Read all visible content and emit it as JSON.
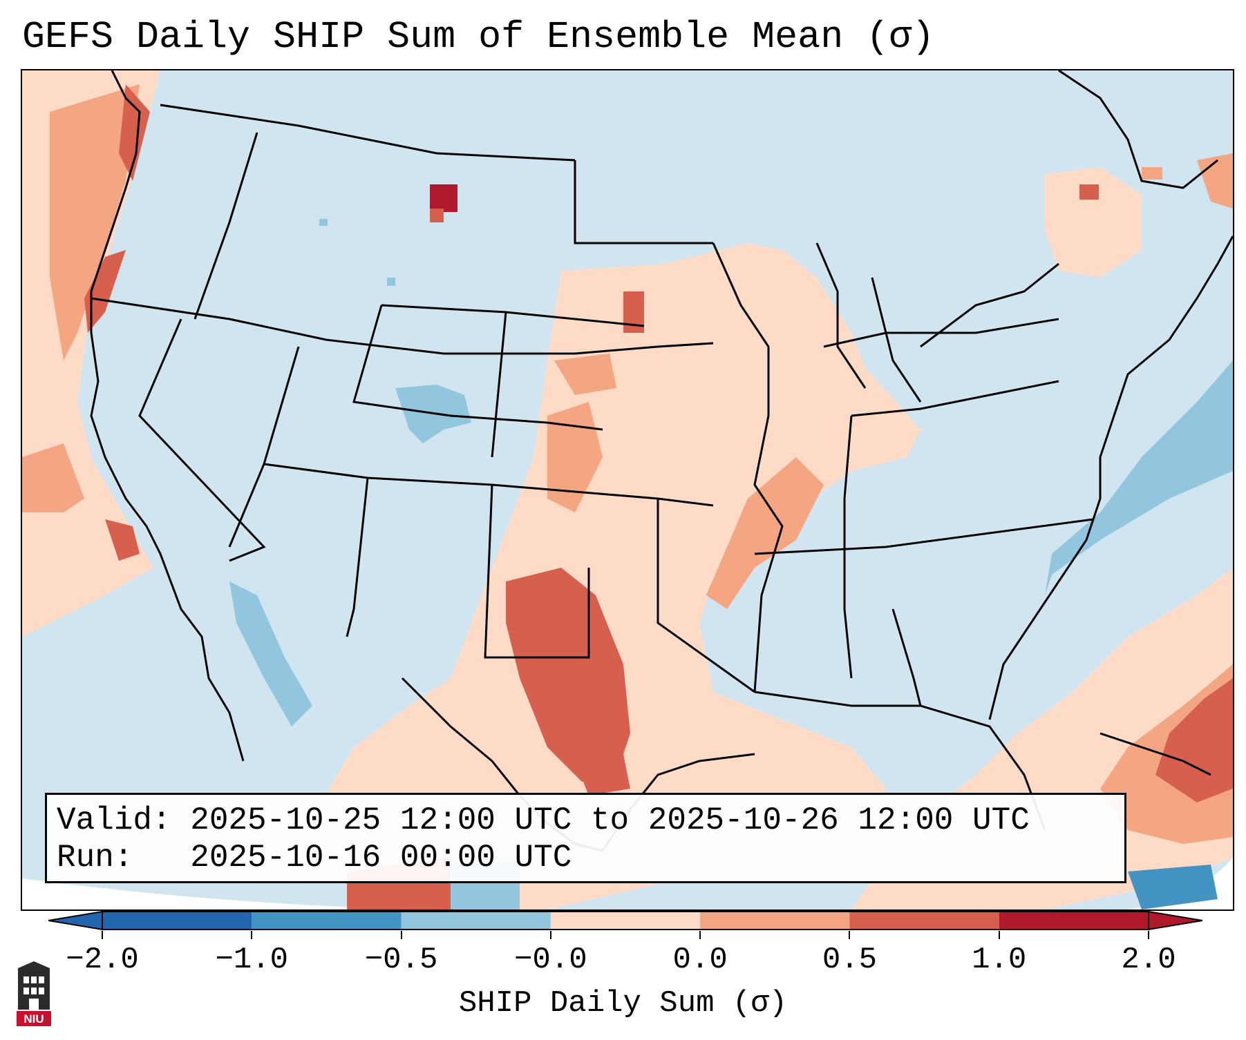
{
  "title": "GEFS Daily SHIP Sum of Ensemble Mean (σ)",
  "info": {
    "valid_line": "Valid: 2025-10-25 12:00 UTC to 2025-10-26 12:00 UTC",
    "run_line": "Run:   2025-10-16 00:00 UTC"
  },
  "colorbar": {
    "label": "SHIP Daily Sum (σ)",
    "tick_labels": [
      "−2.0",
      "−1.0",
      "−0.5",
      "−0.0",
      "0.0",
      "0.5",
      "1.0",
      "2.0"
    ],
    "colors": [
      "#2166ac",
      "#4393c3",
      "#92c5de",
      "#d1e5f0",
      "#fddbc7",
      "#f4a582",
      "#d6604d",
      "#b2182b"
    ]
  },
  "logo": {
    "text": "NIU"
  }
}
